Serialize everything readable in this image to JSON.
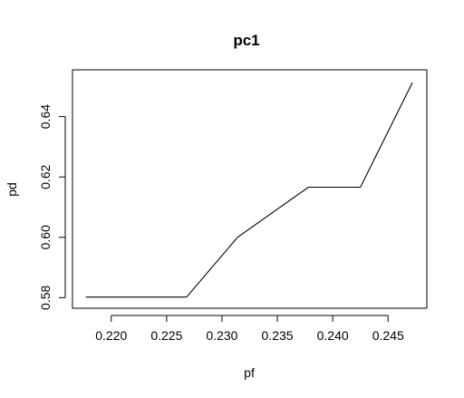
{
  "chart_data": {
    "type": "line",
    "title": "pc1",
    "xlabel": "pf",
    "ylabel": "pd",
    "xlim": [
      0.2165,
      0.2485
    ],
    "ylim": [
      0.5765,
      0.6555
    ],
    "x_ticks": [
      0.22,
      0.225,
      0.23,
      0.235,
      0.24,
      0.245
    ],
    "x_tick_labels": [
      "0.220",
      "0.225",
      "0.230",
      "0.235",
      "0.240",
      "0.245"
    ],
    "y_ticks": [
      0.58,
      0.6,
      0.62,
      0.64
    ],
    "y_tick_labels": [
      "0.58",
      "0.60",
      "0.62",
      "0.64"
    ],
    "grid": false,
    "series": [
      {
        "x": [
          0.2177,
          0.2268,
          0.2314,
          0.2378,
          0.2425,
          0.2472
        ],
        "y": [
          0.5802,
          0.5802,
          0.6,
          0.6166,
          0.6166,
          0.6513
        ]
      }
    ],
    "colors": {
      "line": "#000000",
      "background": "#ffffff"
    }
  }
}
